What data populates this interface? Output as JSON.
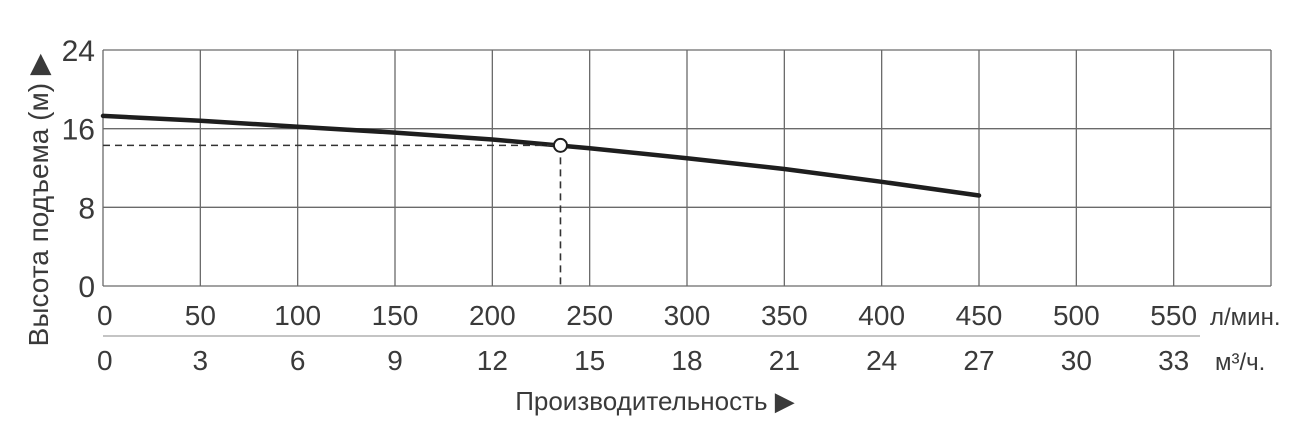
{
  "chart_data": {
    "type": "line",
    "ylabel": "Высота подъема (м) ▶",
    "xlabel": "Производительность ▶",
    "y_ticks": [
      "0",
      "8",
      "16",
      "24"
    ],
    "ylim": [
      0,
      24
    ],
    "x_ticks_primary": [
      "0",
      "50",
      "100",
      "150",
      "200",
      "250",
      "300",
      "350",
      "400",
      "450",
      "500",
      "550"
    ],
    "x_unit_primary": "л/мин.",
    "x_ticks_secondary": [
      "0",
      "3",
      "6",
      "9",
      "12",
      "15",
      "18",
      "21",
      "24",
      "27",
      "30",
      "33"
    ],
    "x_unit_secondary": "м³/ч.",
    "xlim": [
      0,
      600
    ],
    "grid": true,
    "series": [
      {
        "x": [
          0,
          50,
          100,
          150,
          200,
          250,
          300,
          350,
          400,
          450
        ],
        "y": [
          17.3,
          16.8,
          16.2,
          15.6,
          14.9,
          14.0,
          13.0,
          11.9,
          10.6,
          9.2
        ]
      }
    ],
    "operating_point": {
      "x": 235,
      "y": 14.3
    }
  }
}
